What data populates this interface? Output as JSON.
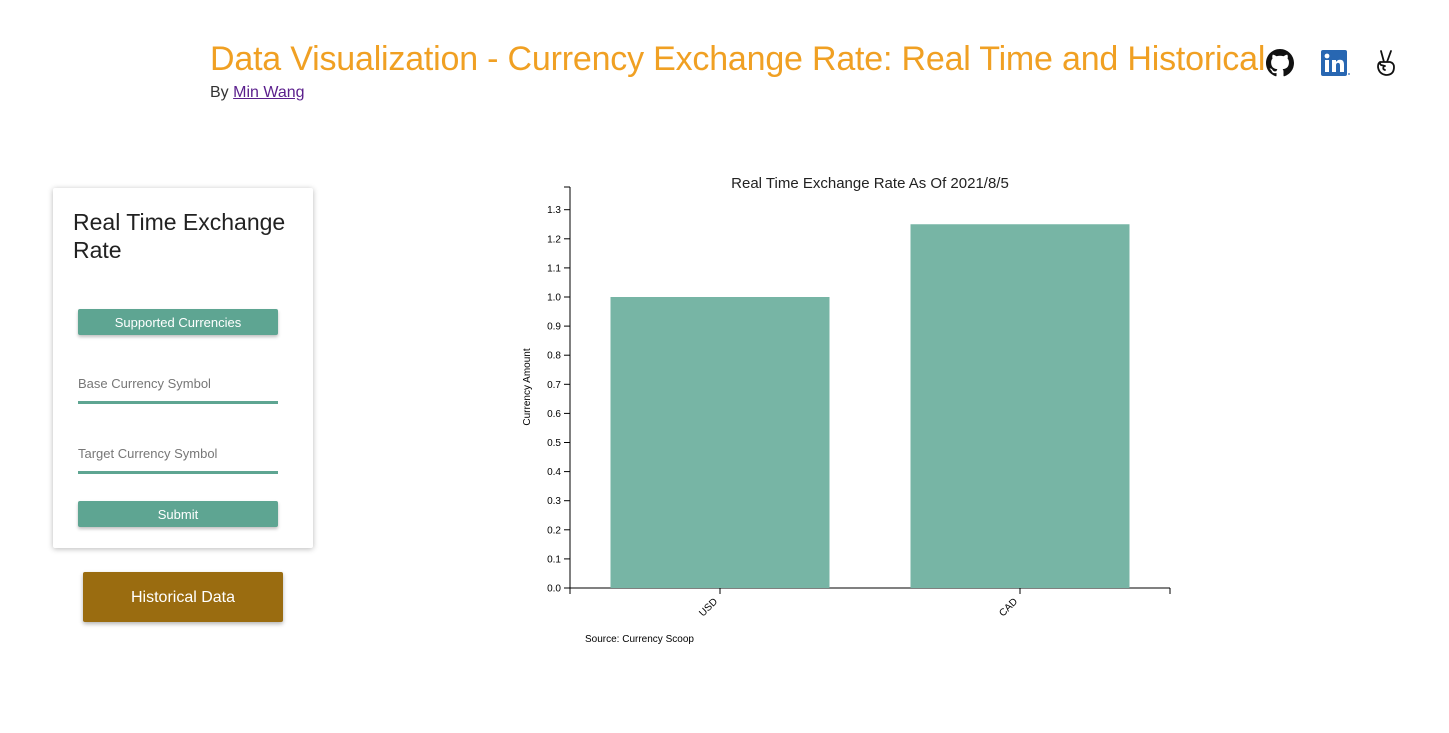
{
  "header": {
    "title": "Data Visualization - Currency Exchange Rate: Real Time and Historical",
    "by_prefix": "By",
    "author": "Min Wang"
  },
  "social": [
    {
      "icon": "github-icon"
    },
    {
      "icon": "linkedin-icon"
    },
    {
      "icon": "angellist-icon"
    }
  ],
  "card": {
    "title": "Real Time Exchange Rate",
    "supported_label": "Supported Currencies",
    "base_placeholder": "Base Currency Symbol",
    "target_placeholder": "Target Currency Symbol",
    "submit_label": "Submit"
  },
  "historical_label": "Historical Data",
  "colors": {
    "title": "#f0a023",
    "accent": "#5ea592",
    "bar": "#77b5a5",
    "historical": "#9a6c10",
    "link": "#5a1e8c"
  },
  "chart_data": {
    "type": "bar",
    "title": "Real Time Exchange Rate As Of 2021/8/5",
    "xlabel": "",
    "ylabel": "Currency Amount",
    "categories": [
      "USD",
      "CAD"
    ],
    "values": [
      1.0,
      1.25
    ],
    "ylim": [
      0,
      1.3
    ],
    "yticks": [
      "0.0",
      "0.1",
      "0.2",
      "0.3",
      "0.4",
      "0.5",
      "0.6",
      "0.7",
      "0.8",
      "0.9",
      "1.0",
      "1.1",
      "1.2",
      "1.3"
    ],
    "source": "Source: Currency Scoop",
    "grid": false
  }
}
